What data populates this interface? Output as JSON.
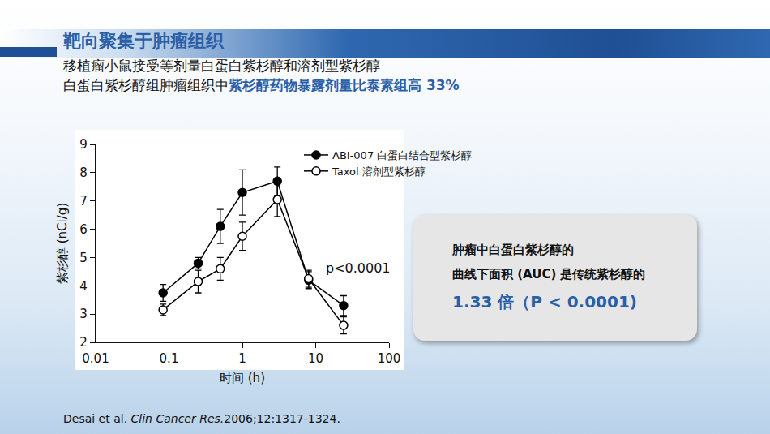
{
  "slide": {
    "title": "靶向聚集于肿瘤组织",
    "subtitle_line1": "移植瘤小鼠接受等剂量白蛋白紫杉醇和溶剂型紫杉醇",
    "subtitle_line2_plain": "白蛋白紫杉醇组肿瘤组织中",
    "subtitle_line2_highlight": "紫杉醇药物暴露剂量比泰素组高 33%",
    "callout_line1": "肿瘤中白蛋白紫杉醇的",
    "callout_line2": "曲线下面积 (AUC) 是传统紫杉醇的",
    "callout_line3": "1.33 倍（P < 0.0001)",
    "citation_authors": "Desai et al. ",
    "citation_journal": "Clin Cancer Res.",
    "citation_rest": "2006;12:1317-1324."
  },
  "chart_data": {
    "type": "line",
    "x_label": "时间 (h)",
    "y_label": "紫杉醇 (nCi/g)",
    "x": [
      0.083,
      0.25,
      0.5,
      1,
      3,
      8,
      24
    ],
    "series": [
      {
        "name": "ABI-007 白蛋白结合型紫杉醇",
        "color": "#000000",
        "marker": "circle",
        "values": [
          3.75,
          4.8,
          6.1,
          7.3,
          7.7,
          4.2,
          3.3
        ],
        "errors": [
          0.3,
          0.2,
          0.6,
          0.8,
          0.5,
          0.3,
          0.35
        ]
      },
      {
        "name": "Taxol 溶剂型紫杉醇",
        "color": "#000000",
        "marker": "circle-open",
        "values": [
          3.15,
          4.15,
          4.6,
          5.75,
          7.05,
          4.25,
          2.6
        ],
        "errors": [
          0.2,
          0.4,
          0.4,
          0.5,
          0.6,
          0.3,
          0.3
        ]
      }
    ],
    "annotation": "p<0.0001",
    "log": "x",
    "xlim": [
      0.01,
      100
    ],
    "xticks": [
      0.01,
      0.1,
      1,
      10,
      100
    ],
    "ylim": [
      2,
      9
    ],
    "yticks": [
      2,
      3,
      4,
      5,
      6,
      7,
      8,
      9
    ],
    "grid": false,
    "legend": "top-right"
  }
}
